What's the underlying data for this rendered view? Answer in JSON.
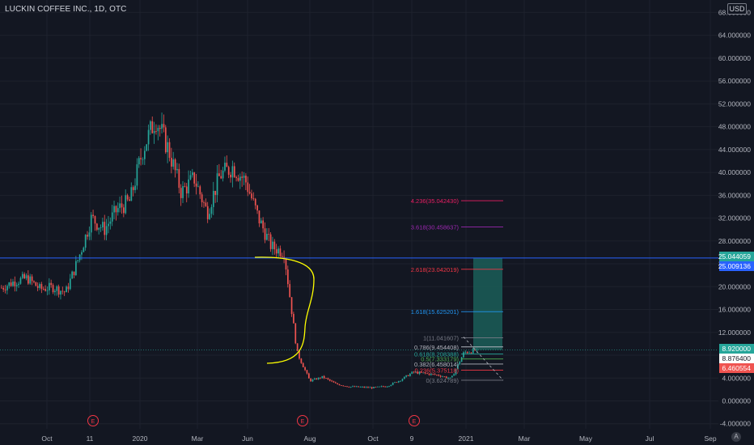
{
  "header": {
    "title": "LUCKIN COFFEE INC., 1D, OTC",
    "currency": "USD"
  },
  "toolbar": {
    "auto_label": "A"
  },
  "colors": {
    "background": "#131722",
    "grid": "#1e222d",
    "axis_text": "#b2b5be",
    "candle_up": "#26a69a",
    "candle_down": "#ef5350",
    "horizontal_line": "#2962ff",
    "annotation_curve": "#ffff00",
    "position_box": "#1b5e58",
    "earnings_marker": "#f23645"
  },
  "price_axis": {
    "tick_labels": [
      "68.000000",
      "64.000000",
      "60.000000",
      "56.000000",
      "52.000000",
      "48.000000",
      "44.000000",
      "40.000000",
      "36.000000",
      "32.000000",
      "28.000000",
      "24.000000",
      "20.000000",
      "16.000000",
      "12.000000",
      "8.000000",
      "4.000000",
      "0.000000",
      "-4.000000"
    ],
    "badges": [
      {
        "label": "25.044059",
        "color": "#26a69a",
        "text_color": "#ffffff"
      },
      {
        "label": "25.009136",
        "color": "#2962ff",
        "text_color": "#ffffff"
      },
      {
        "label": "8.920000",
        "color": "#26a69a",
        "text_color": "#ffffff"
      },
      {
        "label": "8.876400",
        "color": "#ffffff",
        "text_color": "#131722"
      },
      {
        "label": "6.460554",
        "color": "#ef5350",
        "text_color": "#ffffff"
      }
    ]
  },
  "time_axis": {
    "labels": [
      "Oct",
      "11",
      "2020",
      "Mar",
      "Jun",
      "Aug",
      "Oct",
      "9",
      "2021",
      "Mar",
      "May",
      "Jul",
      "Sep"
    ]
  },
  "earnings_markers": [
    "E",
    "E",
    "E"
  ],
  "fibonacci": [
    {
      "label": "4.236(35.042430)",
      "color": "#e91e63"
    },
    {
      "label": "3.618(30.458637)",
      "color": "#9c27b0"
    },
    {
      "label": "2.618(23.042019)",
      "color": "#f23645"
    },
    {
      "label": "1.618(15.625201)",
      "color": "#2196f3"
    },
    {
      "label": "1(11.041607)",
      "color": "#787b86"
    },
    {
      "label": "0.786(9.454408)",
      "color": "#b2b5be"
    },
    {
      "label": "0.618(8.208388)",
      "color": "#26a69a"
    },
    {
      "label": "0.5(7.333179)",
      "color": "#4caf50"
    },
    {
      "label": "0.382(6.458014)",
      "color": "#b2b5be"
    },
    {
      "label": "0.236(5.375118)",
      "color": "#f23645"
    },
    {
      "label": "0(3.624789)",
      "color": "#787b86"
    }
  ],
  "chart_data": {
    "type": "candlestick",
    "title": "LUCKIN COFFEE INC., 1D, OTC",
    "ylim": [
      -4,
      70
    ],
    "price_scale_ticks": [
      68,
      64,
      60,
      56,
      52,
      48,
      44,
      40,
      36,
      32,
      28,
      24,
      20,
      16,
      12,
      8,
      4,
      0,
      -4
    ],
    "x_tick_labels": [
      "Oct",
      "11",
      "2020",
      "Mar",
      "Jun",
      "Aug",
      "Oct",
      "9",
      "2021",
      "Mar",
      "May",
      "Jul",
      "Sep"
    ],
    "grid": true,
    "legend": "none",
    "path_points": [
      {
        "x": "2019-09",
        "y": 19.8
      },
      {
        "x": "2019-10",
        "y": 20.9
      },
      {
        "x": "2019-10",
        "y": 21.5
      },
      {
        "x": "2019-10",
        "y": 19.6
      },
      {
        "x": "2019-11",
        "y": 19.9
      },
      {
        "x": "2019-11",
        "y": 19.0
      },
      {
        "x": "2019-11",
        "y": 25.0
      },
      {
        "x": "2019-12",
        "y": 32.0
      },
      {
        "x": "2019-12",
        "y": 30.0
      },
      {
        "x": "2019-12",
        "y": 33.5
      },
      {
        "x": "2019-12",
        "y": 35.0
      },
      {
        "x": "2020-01",
        "y": 44.0
      },
      {
        "x": "2020-01",
        "y": 49.5
      },
      {
        "x": "2020-01",
        "y": 44.0
      },
      {
        "x": "2020-02",
        "y": 36.5
      },
      {
        "x": "2020-02",
        "y": 39.0
      },
      {
        "x": "2020-02",
        "y": 33.0
      },
      {
        "x": "2020-02",
        "y": 39.5
      },
      {
        "x": "2020-03",
        "y": 41.0
      },
      {
        "x": "2020-03",
        "y": 38.5
      },
      {
        "x": "2020-03",
        "y": 32.0
      },
      {
        "x": "2020-03",
        "y": 27.0
      },
      {
        "x": "2020-04",
        "y": 26.0
      },
      {
        "x": "2020-04",
        "y": 8.5
      },
      {
        "x": "2020-04",
        "y": 3.5
      },
      {
        "x": "2020-05",
        "y": 4.2
      },
      {
        "x": "2020-05",
        "y": 3.0
      },
      {
        "x": "2020-06",
        "y": 2.5
      },
      {
        "x": "2020-07",
        "y": 2.4
      },
      {
        "x": "2020-08",
        "y": 2.3
      },
      {
        "x": "2020-09",
        "y": 2.6
      },
      {
        "x": "2020-10",
        "y": 3.6
      },
      {
        "x": "2020-10",
        "y": 5.0
      },
      {
        "x": "2020-11",
        "y": 4.8
      },
      {
        "x": "2020-12",
        "y": 4.5
      },
      {
        "x": "2020-12",
        "y": 3.9
      },
      {
        "x": "2021-01",
        "y": 8.5
      },
      {
        "x": "2021-01",
        "y": 8.9
      }
    ],
    "horizontal_line": 25.009136,
    "position_box": {
      "top": 25.044059,
      "bottom": 8.92
    },
    "fibonacci_levels": [
      35.04243,
      30.458637,
      23.042019,
      15.625201,
      11.041607,
      9.454408,
      8.208388,
      7.333179,
      6.458014,
      5.375118,
      3.624789
    ]
  }
}
